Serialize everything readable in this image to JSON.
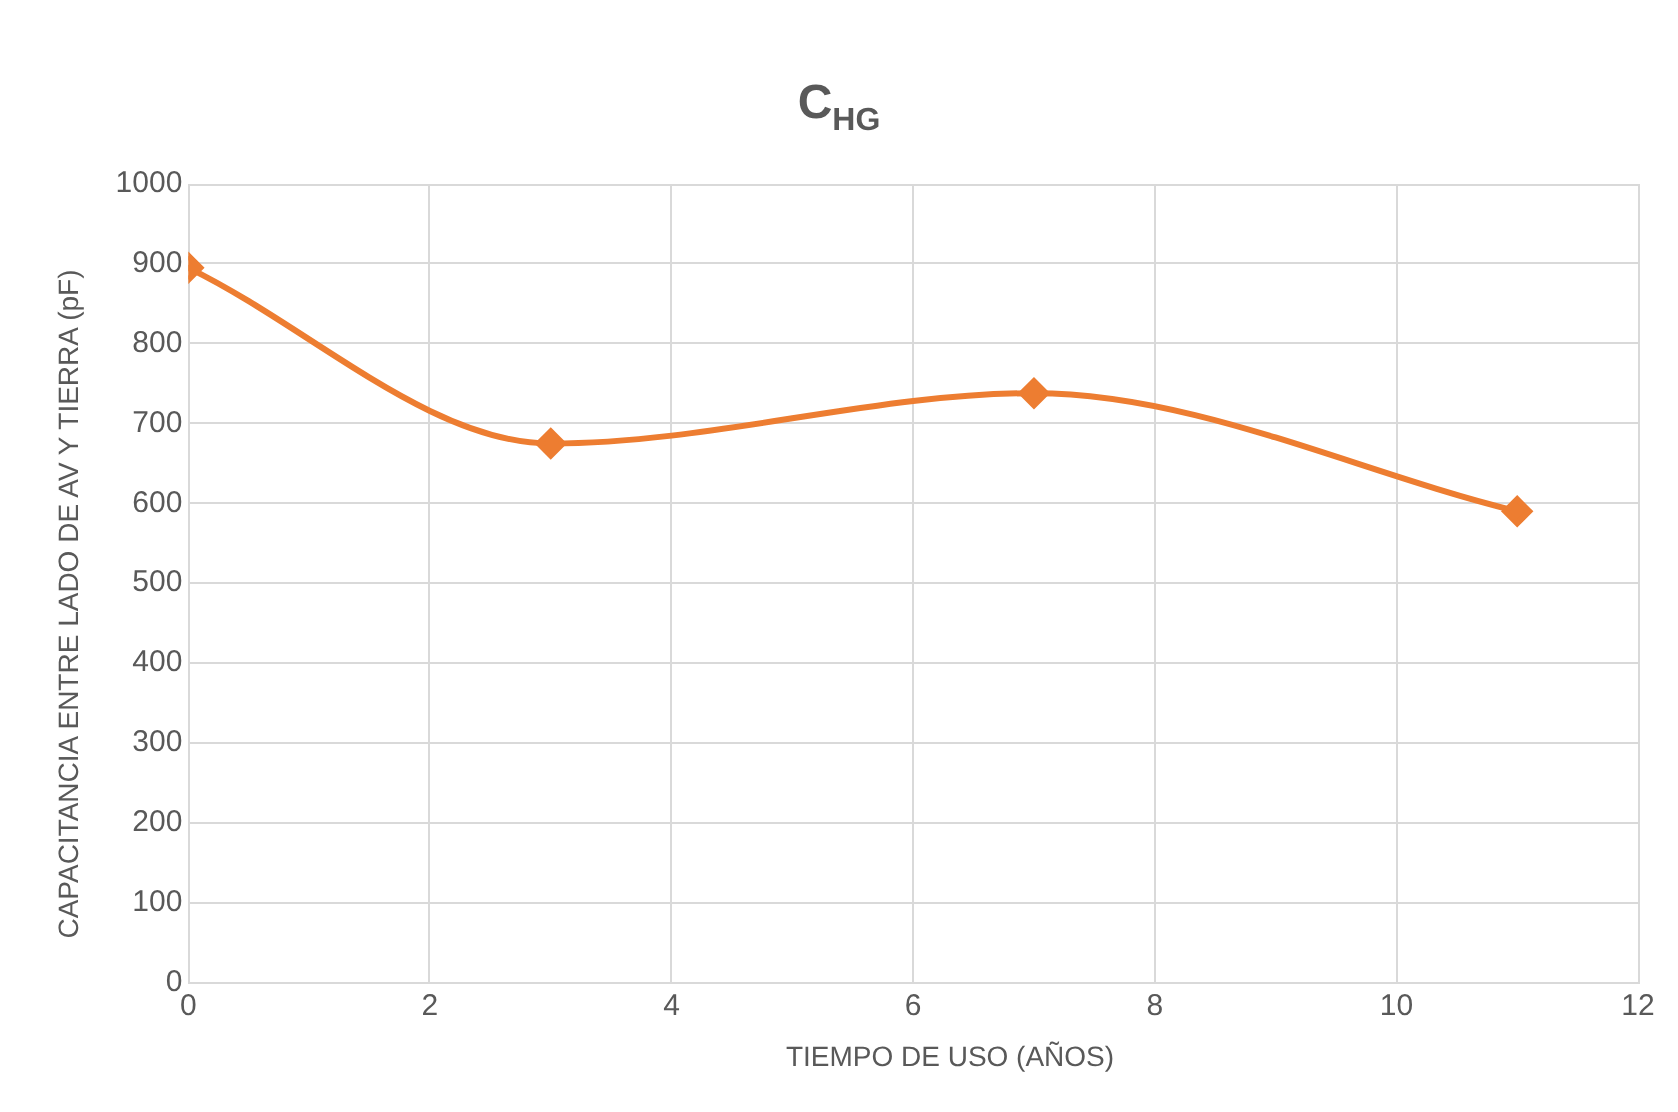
{
  "chart_data": {
    "type": "line",
    "title": "C$_{HG}$",
    "xlabel": "TIEMPO DE USO (AÑOS)",
    "ylabel": "CAPACITANCIA ENTRE LADO DE AV Y TIERRA (pF)",
    "x": [
      0,
      3,
      7,
      11
    ],
    "series": [
      {
        "color": "#ed7d31",
        "values": [
          895,
          675,
          738,
          590
        ]
      }
    ],
    "xlim": [
      0,
      12
    ],
    "xticks": [
      0,
      2,
      4,
      6,
      8,
      10,
      12
    ],
    "ylim": [
      0,
      1000
    ],
    "yticks": [
      0,
      100,
      200,
      300,
      400,
      500,
      600,
      700,
      800,
      900,
      1000
    ],
    "grid": true,
    "legend": false,
    "marker": "diamond",
    "line_style": "solid"
  }
}
